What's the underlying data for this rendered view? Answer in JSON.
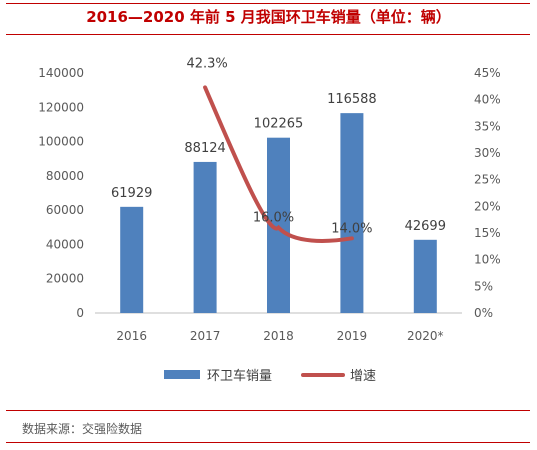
{
  "title": "2016—2020 年前 5 月我国环卫车销量（单位：辆）",
  "source": "数据来源：交强险数据",
  "colors": {
    "bar": "#4f81bd",
    "line": "#c0504d",
    "accent": "#c00000"
  },
  "chart_data": {
    "type": "bar",
    "categories": [
      "2016",
      "2017",
      "2018",
      "2019",
      "2020*"
    ],
    "series": [
      {
        "name": "环卫车销量",
        "type": "bar",
        "axis": "left",
        "values": [
          61929,
          88124,
          102265,
          116588,
          42699
        ],
        "labels": [
          "61929",
          "88124",
          "102265",
          "116588",
          "42699"
        ]
      },
      {
        "name": "增速",
        "type": "line",
        "axis": "right",
        "values": [
          null,
          42.3,
          16.0,
          14.0,
          null
        ],
        "labels": [
          null,
          "42.3%",
          "16.0%",
          "14.0%",
          null
        ]
      }
    ],
    "ylim": [
      0,
      140000
    ],
    "yticks": [
      "0",
      "20000",
      "40000",
      "60000",
      "80000",
      "100000",
      "120000",
      "140000"
    ],
    "y2lim": [
      0,
      45
    ],
    "y2ticks": [
      "0%",
      "5%",
      "10%",
      "15%",
      "20%",
      "25%",
      "30%",
      "35%",
      "40%",
      "45%"
    ],
    "legend": "bottom",
    "grid": false
  }
}
